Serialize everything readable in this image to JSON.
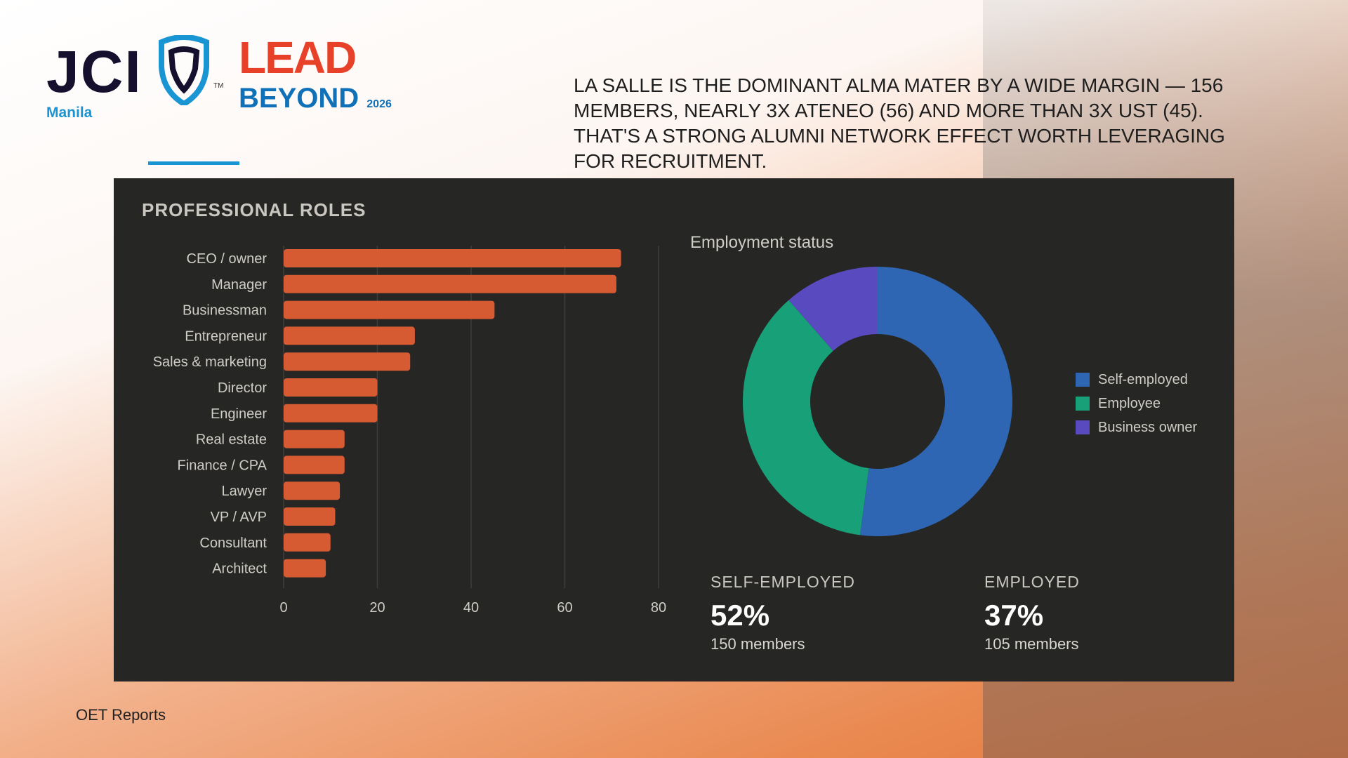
{
  "header": {
    "logo_text": "JCI",
    "logo_sub": "Manila",
    "logo_tm": "TM",
    "event_logo_line1": "LEAD",
    "event_logo_line2": "BEYOND",
    "event_logo_year": "2026"
  },
  "insight": "La Salle is the dominant alma mater by a wide margin — 156 members, nearly 3x Ateneo (56) and more than 3x UST (45). That's a strong alumni network effect worth leveraging for recruitment.",
  "panel_title": "PROFESSIONAL ROLES",
  "colors": {
    "bar": "#d65a32",
    "self_employed": "#2f66b3",
    "employee": "#18a078",
    "business_owner": "#5a4abf",
    "panel": "#262624"
  },
  "chart_data": [
    {
      "type": "bar",
      "orientation": "horizontal",
      "title": "Professional roles",
      "categories": [
        "CEO / owner",
        "Manager",
        "Businessman",
        "Entrepreneur",
        "Sales & marketing",
        "Director",
        "Engineer",
        "Real estate",
        "Finance / CPA",
        "Lawyer",
        "VP / AVP",
        "Consultant",
        "Architect"
      ],
      "values": [
        72,
        71,
        45,
        28,
        27,
        20,
        20,
        13,
        13,
        12,
        11,
        10,
        9
      ],
      "xlim": [
        0,
        80
      ],
      "xticks": [
        0,
        20,
        40,
        60,
        80
      ],
      "grid": true
    },
    {
      "type": "pie",
      "donut": true,
      "title": "Employment status",
      "labels": [
        "Self-employed",
        "Employee",
        "Business owner"
      ],
      "values": [
        150,
        105,
        33
      ],
      "legend": "right"
    }
  ],
  "stats": [
    {
      "label": "SELF-EMPLOYED",
      "value": "52%",
      "members": "150 members"
    },
    {
      "label": "EMPLOYED",
      "value": "37%",
      "members": "105 members"
    }
  ],
  "footer": "OET Reports"
}
